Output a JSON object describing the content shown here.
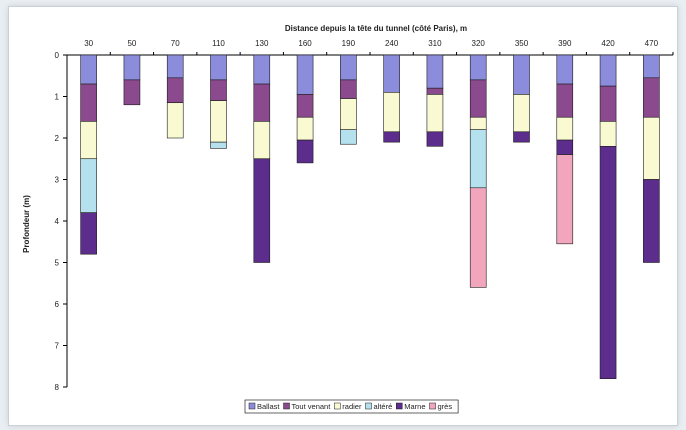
{
  "chart_data": {
    "type": "bar",
    "stacked": true,
    "orientation": "vertical-inverted",
    "title": "Distance depuis la tête du tunnel (côté Paris), m",
    "ylabel": "Profondeur (m)",
    "xlabel": "",
    "ylim": [
      0,
      8
    ],
    "yticks": [
      0,
      1,
      2,
      3,
      4,
      5,
      6,
      7,
      8
    ],
    "x_axis_position": "top",
    "legend_position": "bottom",
    "grid": false,
    "categories": [
      "30",
      "50",
      "70",
      "110",
      "130",
      "160",
      "190",
      "240",
      "310",
      "320",
      "350",
      "390",
      "420",
      "470"
    ],
    "series": [
      {
        "name": "Ballast",
        "color": "#8c8cdc",
        "values": [
          0.7,
          0.6,
          0.55,
          0.6,
          0.7,
          0.95,
          0.6,
          0.9,
          0.8,
          0.6,
          0.95,
          0.7,
          0.75,
          0.55
        ]
      },
      {
        "name": "Tout venant",
        "color": "#8b4a8e",
        "values": [
          0.9,
          0.6,
          0.6,
          0.5,
          0.9,
          0.55,
          0.45,
          0,
          0.15,
          0.9,
          0,
          0.8,
          0.85,
          0.95
        ]
      },
      {
        "name": "radier",
        "color": "#fafad2",
        "values": [
          0.9,
          0,
          0.85,
          1.0,
          0.9,
          0.55,
          0.75,
          0.95,
          0.9,
          0.3,
          0.9,
          0.55,
          0.6,
          1.5
        ]
      },
      {
        "name": "altéré",
        "color": "#b5e0ee",
        "values": [
          1.3,
          0,
          0,
          0.15,
          0,
          0,
          0.35,
          0,
          0,
          1.4,
          0,
          0,
          0,
          0
        ]
      },
      {
        "name": "Marne",
        "color": "#5c2d8c",
        "values": [
          1.0,
          0,
          0,
          0,
          2.5,
          0.55,
          0,
          0.25,
          0.35,
          0,
          0.25,
          0.35,
          5.6,
          2.0
        ]
      },
      {
        "name": "grès",
        "color": "#f2a6be",
        "values": [
          0,
          0,
          0,
          0,
          0,
          0,
          0,
          0,
          0,
          2.4,
          0,
          2.15,
          0,
          0
        ]
      }
    ]
  }
}
